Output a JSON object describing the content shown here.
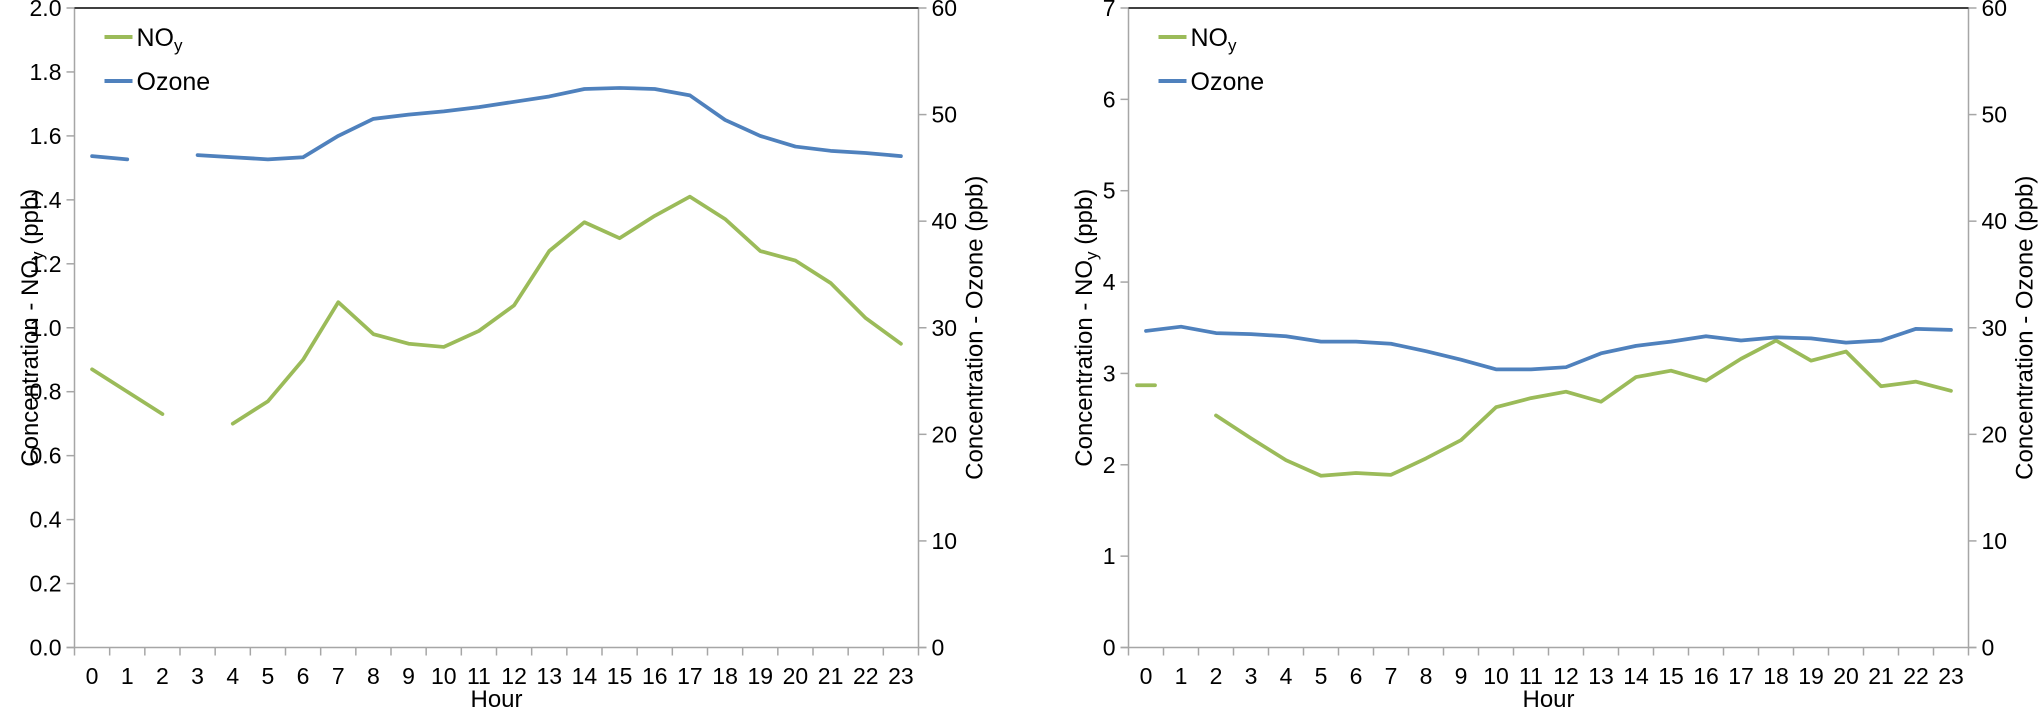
{
  "colors": {
    "noy_line": "#9BBB59",
    "ozone_line": "#4F81BD",
    "axis_line": "#A6A6A6",
    "top_border": "#404040",
    "text": "#000000"
  },
  "chart_data": [
    {
      "type": "line",
      "title": "",
      "xlabel": "Hour",
      "x_categories": [
        "0",
        "1",
        "2",
        "3",
        "4",
        "5",
        "6",
        "7",
        "8",
        "9",
        "10",
        "11",
        "12",
        "13",
        "14",
        "15",
        "16",
        "17",
        "18",
        "19",
        "20",
        "21",
        "22",
        "23"
      ],
      "ylabel_left": {
        "pre": "Concentration - NO",
        "sub": "y",
        "post": " (ppb)"
      },
      "ylabel_right": {
        "pre": "Concentration - Ozone (ppb)",
        "sub": "",
        "post": ""
      },
      "ylim_left": [
        0,
        2.0
      ],
      "ylim_right": [
        0,
        60
      ],
      "yticks_left": {
        "values": [
          0,
          0.2,
          0.4,
          0.6,
          0.8,
          1.0,
          1.2,
          1.4,
          1.6,
          1.8,
          2.0
        ],
        "labels": [
          "0.0",
          "0.2",
          "0.4",
          "0.6",
          "0.8",
          "1.0",
          "1.2",
          "1.4",
          "1.6",
          "1.8",
          "2.0"
        ]
      },
      "yticks_right": {
        "values": [
          0,
          10,
          20,
          30,
          40,
          50,
          60
        ],
        "labels": [
          "0",
          "10",
          "20",
          "30",
          "40",
          "50",
          "60"
        ]
      },
      "grid": false,
      "legend_position": "top-left-inside",
      "series": [
        {
          "name_main": "NO",
          "name_sub": "y",
          "axis": "left",
          "color_key": "noy_line",
          "values": [
            0.87,
            0.8,
            0.73,
            null,
            0.7,
            0.77,
            0.9,
            1.08,
            0.98,
            0.95,
            0.94,
            0.99,
            1.07,
            1.24,
            1.33,
            1.28,
            1.35,
            1.41,
            1.34,
            1.24,
            1.21,
            1.14,
            1.03,
            0.95
          ]
        },
        {
          "name_main": "Ozone",
          "name_sub": "",
          "axis": "right",
          "color_key": "ozone_line",
          "values": [
            46.1,
            45.8,
            null,
            46.2,
            46.0,
            45.8,
            46.0,
            48.0,
            49.6,
            50.0,
            50.3,
            50.7,
            51.2,
            51.7,
            52.4,
            52.5,
            52.4,
            51.8,
            49.5,
            48.0,
            47.0,
            46.6,
            46.4,
            46.1
          ]
        }
      ]
    },
    {
      "type": "line",
      "title": "",
      "xlabel": "Hour",
      "x_categories": [
        "0",
        "1",
        "2",
        "3",
        "4",
        "5",
        "6",
        "7",
        "8",
        "9",
        "10",
        "11",
        "12",
        "13",
        "14",
        "15",
        "16",
        "17",
        "18",
        "19",
        "20",
        "21",
        "22",
        "23"
      ],
      "ylabel_left": {
        "pre": "Concentration - NO",
        "sub": "y",
        "post": " (ppb)"
      },
      "ylabel_right": {
        "pre": "Concentration - Ozone (ppb)",
        "sub": "",
        "post": ""
      },
      "ylim_left": [
        0,
        7
      ],
      "ylim_right": [
        0,
        60
      ],
      "yticks_left": {
        "values": [
          0,
          1,
          2,
          3,
          4,
          5,
          6,
          7
        ],
        "labels": [
          "0",
          "1",
          "2",
          "3",
          "4",
          "5",
          "6",
          "7"
        ]
      },
      "yticks_right": {
        "values": [
          0,
          10,
          20,
          30,
          40,
          50,
          60
        ],
        "labels": [
          "0",
          "10",
          "20",
          "30",
          "40",
          "50",
          "60"
        ]
      },
      "grid": false,
      "legend_position": "top-left-inside",
      "series": [
        {
          "name_main": "NO",
          "name_sub": "y",
          "axis": "left",
          "color_key": "noy_line",
          "values": [
            2.87,
            null,
            2.54,
            2.29,
            2.05,
            1.88,
            1.91,
            1.89,
            2.07,
            2.27,
            2.63,
            2.73,
            2.8,
            2.69,
            2.96,
            3.03,
            2.92,
            3.16,
            3.36,
            3.14,
            3.24,
            2.86,
            2.91,
            2.81
          ]
        },
        {
          "name_main": "Ozone",
          "name_sub": "",
          "axis": "right",
          "color_key": "ozone_line",
          "values": [
            29.7,
            30.1,
            29.5,
            29.4,
            29.2,
            28.7,
            28.7,
            28.5,
            27.8,
            27.0,
            26.1,
            26.1,
            26.3,
            27.6,
            28.3,
            28.7,
            29.2,
            28.8,
            29.1,
            29.0,
            28.6,
            28.8,
            29.9,
            29.8
          ]
        }
      ]
    }
  ]
}
